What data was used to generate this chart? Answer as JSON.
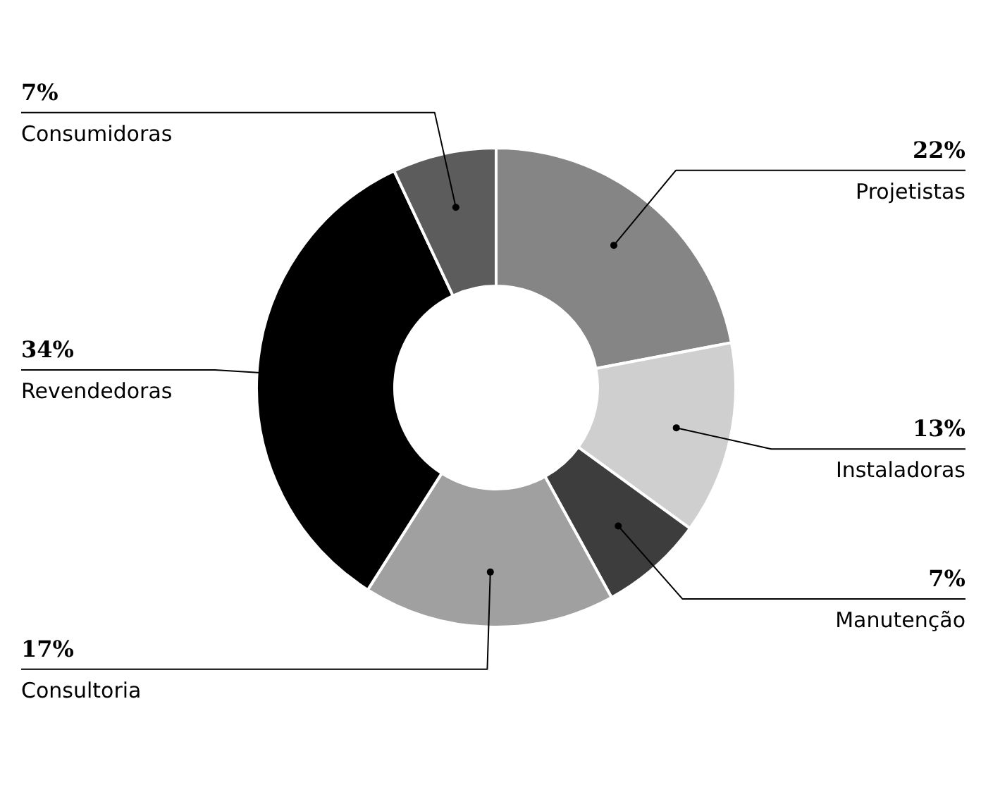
{
  "chart_data": {
    "type": "donut",
    "categories": [
      "Projetistas",
      "Instaladoras",
      "Manutenção",
      "Consultoria",
      "Revendedoras",
      "Consumidoras"
    ],
    "values": [
      22,
      13,
      7,
      17,
      34,
      7
    ],
    "value_labels": [
      "22%",
      "13%",
      "7%",
      "17%",
      "34%",
      "7%"
    ],
    "colors": [
      "#858585",
      "#cfcfcf",
      "#3d3d3d",
      "#a0a0a0",
      "#000000",
      "#5c5c5c"
    ]
  }
}
